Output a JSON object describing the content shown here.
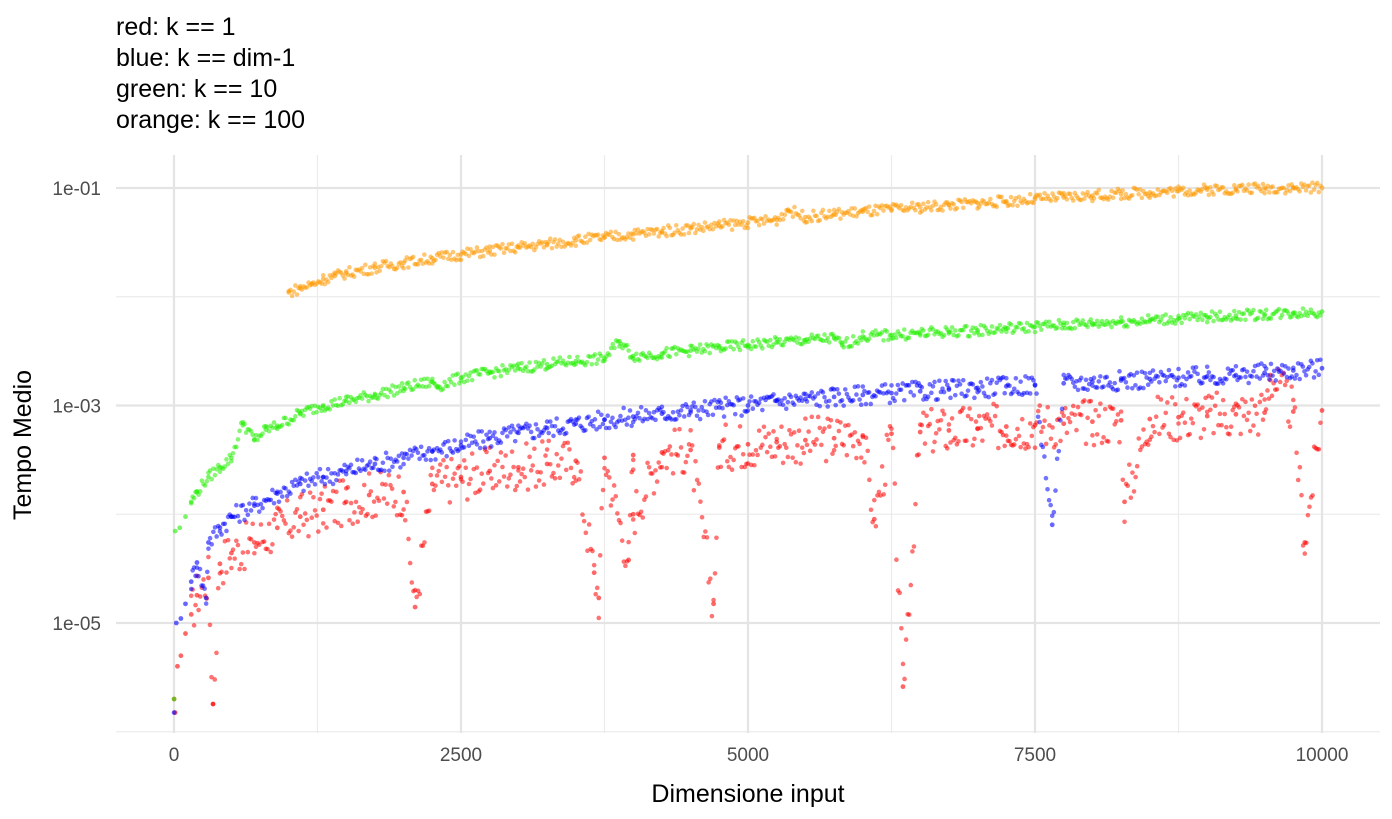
{
  "title_lines": [
    "red: k == 1",
    "blue: k == dim-1",
    "green: k == 10",
    "orange: k == 100"
  ],
  "chart_data": {
    "type": "scatter",
    "xlabel": "Dimensione input",
    "ylabel": "Tempo Medio",
    "x_ticks": [
      0,
      2500,
      5000,
      7500,
      10000
    ],
    "x_tick_labels": [
      "0",
      "2500",
      "5000",
      "7500",
      "10000"
    ],
    "xlim": [
      -500,
      10500
    ],
    "y_scale": "log10",
    "y_ticks": [
      1e-05,
      0.001,
      0.1
    ],
    "y_tick_labels": [
      "1e-05",
      "1e-03",
      "1e-01"
    ],
    "ylim": [
      1e-06,
      0.2
    ],
    "grid": true,
    "series": [
      {
        "color": "#ff0000",
        "points": [
          [
            1,
            2e-06
          ],
          [
            10,
            1.5e-06
          ],
          [
            30,
            4e-06
          ],
          [
            60,
            5e-06
          ],
          [
            100,
            8e-06
          ],
          [
            150,
            1.2e-05
          ],
          [
            200,
            1.8e-05
          ],
          [
            300,
            2.6e-05
          ],
          [
            400,
            3.5e-05
          ],
          [
            500,
            4.4e-05
          ],
          [
            700,
            5.5e-05
          ],
          [
            900,
            7.5e-05
          ],
          [
            1100,
            9.5e-05
          ],
          [
            1300,
            0.00011
          ],
          [
            1500,
            0.00013
          ],
          [
            1700,
            0.00015
          ],
          [
            2000,
            0.00016
          ],
          [
            2250,
            0.00019
          ],
          [
            2500,
            0.00022
          ],
          [
            2750,
            0.00025
          ],
          [
            3000,
            0.00027
          ],
          [
            3250,
            0.00029
          ],
          [
            3500,
            0.00031
          ],
          [
            3750,
            0.00033
          ],
          [
            4000,
            0.00035
          ],
          [
            4250,
            0.00037
          ],
          [
            4500,
            0.00039
          ],
          [
            4750,
            0.00041
          ],
          [
            5000,
            0.00044
          ],
          [
            5250,
            0.00046
          ],
          [
            5500,
            0.00048
          ],
          [
            5750,
            0.0005
          ],
          [
            6000,
            0.00053
          ],
          [
            6250,
            0.00055
          ],
          [
            6500,
            0.00057
          ],
          [
            6750,
            0.00059
          ],
          [
            7000,
            0.00061
          ],
          [
            7250,
            0.00064
          ],
          [
            7500,
            0.00066
          ],
          [
            7750,
            0.00068
          ],
          [
            8000,
            0.00071
          ],
          [
            8250,
            0.00073
          ],
          [
            8500,
            0.00075
          ],
          [
            8750,
            0.00078
          ],
          [
            9000,
            0.0008
          ],
          [
            9250,
            0.00083
          ],
          [
            9500,
            0.00086
          ],
          [
            9750,
            0.00088
          ],
          [
            10000,
            0.0009
          ],
          [
            340,
            1.8e-06
          ],
          [
            2100,
            1.4e-05
          ],
          [
            3700,
            1.7e-05
          ],
          [
            4700,
            1.5e-05
          ],
          [
            6350,
            2.6e-06
          ],
          [
            3960,
            3.8e-05
          ],
          [
            3660,
            2.9e-05
          ],
          [
            8280,
            0.00013
          ],
          [
            9850,
            5.5e-05
          ],
          [
            6100,
            9e-05
          ],
          [
            4000,
            0.0001
          ],
          [
            9550,
            0.0019
          ]
        ]
      },
      {
        "color": "#0000ff",
        "points": [
          [
            1,
            1.5e-06
          ],
          [
            20,
            1e-05
          ],
          [
            60,
            1.1e-05
          ],
          [
            100,
            1.5e-05
          ],
          [
            150,
            2.4e-05
          ],
          [
            200,
            3.6e-05
          ],
          [
            300,
            5.5e-05
          ],
          [
            400,
            7.5e-05
          ],
          [
            500,
            9.5e-05
          ],
          [
            700,
            0.00012
          ],
          [
            900,
            0.000155
          ],
          [
            1100,
            0.00019
          ],
          [
            1300,
            0.00022
          ],
          [
            1500,
            0.00025
          ],
          [
            1750,
            0.00029
          ],
          [
            2000,
            0.00033
          ],
          [
            2250,
            0.00038
          ],
          [
            2500,
            0.00043
          ],
          [
            2750,
            0.0005
          ],
          [
            3000,
            0.00056
          ],
          [
            3250,
            0.00062
          ],
          [
            3500,
            0.00068
          ],
          [
            3750,
            0.00074
          ],
          [
            4000,
            0.00079
          ],
          [
            4250,
            0.00084
          ],
          [
            4500,
            0.0009
          ],
          [
            4750,
            0.00096
          ],
          [
            5000,
            0.001
          ],
          [
            5250,
            0.0011
          ],
          [
            5500,
            0.00115
          ],
          [
            5750,
            0.0012
          ],
          [
            6000,
            0.00125
          ],
          [
            6250,
            0.0013
          ],
          [
            6500,
            0.00135
          ],
          [
            6750,
            0.0014
          ],
          [
            7000,
            0.00145
          ],
          [
            7250,
            0.0015
          ],
          [
            7500,
            0.00155
          ],
          [
            7750,
            0.0016
          ],
          [
            8000,
            0.00165
          ],
          [
            8250,
            0.0017
          ],
          [
            8500,
            0.00175
          ],
          [
            8750,
            0.0018
          ],
          [
            9000,
            0.00185
          ],
          [
            9250,
            0.0019
          ],
          [
            9500,
            0.002
          ],
          [
            9750,
            0.0021
          ],
          [
            10000,
            0.0022
          ],
          [
            7650,
            8e-05
          ],
          [
            280,
            1.7e-05
          ]
        ]
      },
      {
        "color": "#22ee00",
        "points": [
          [
            1,
            2e-06
          ],
          [
            10,
            7e-05
          ],
          [
            50,
            7.5e-05
          ],
          [
            100,
            9.5e-05
          ],
          [
            150,
            0.00013
          ],
          [
            200,
            0.00016
          ],
          [
            300,
            0.00022
          ],
          [
            400,
            0.00027
          ],
          [
            500,
            0.00033
          ],
          [
            700,
            0.00048
          ],
          [
            900,
            0.00065
          ],
          [
            1100,
            0.00085
          ],
          [
            1300,
            0.001
          ],
          [
            1500,
            0.0011
          ],
          [
            1750,
            0.00125
          ],
          [
            2000,
            0.00145
          ],
          [
            2250,
            0.00165
          ],
          [
            2500,
            0.0018
          ],
          [
            2750,
            0.002
          ],
          [
            3000,
            0.0022
          ],
          [
            3250,
            0.0024
          ],
          [
            3500,
            0.00255
          ],
          [
            3750,
            0.0027
          ],
          [
            4000,
            0.00285
          ],
          [
            4250,
            0.003
          ],
          [
            4500,
            0.0032
          ],
          [
            4750,
            0.0034
          ],
          [
            5000,
            0.0036
          ],
          [
            5250,
            0.0038
          ],
          [
            5500,
            0.004
          ],
          [
            5750,
            0.00415
          ],
          [
            6000,
            0.0043
          ],
          [
            6250,
            0.00445
          ],
          [
            6500,
            0.0046
          ],
          [
            6750,
            0.00475
          ],
          [
            7000,
            0.0049
          ],
          [
            7250,
            0.0051
          ],
          [
            7500,
            0.0053
          ],
          [
            7750,
            0.0055
          ],
          [
            8000,
            0.0057
          ],
          [
            8250,
            0.0059
          ],
          [
            8500,
            0.0061
          ],
          [
            8750,
            0.0063
          ],
          [
            9000,
            0.0065
          ],
          [
            9250,
            0.0067
          ],
          [
            9500,
            0.0069
          ],
          [
            9750,
            0.0071
          ],
          [
            10000,
            0.0073
          ],
          [
            600,
            0.0007
          ],
          [
            800,
            0.0006
          ],
          [
            2300,
            0.0015
          ],
          [
            3880,
            0.0039
          ],
          [
            5820,
            0.0036
          ]
        ]
      },
      {
        "color": "#ff9900",
        "points": [
          [
            1000,
            0.011
          ],
          [
            1100,
            0.012
          ],
          [
            1200,
            0.013
          ],
          [
            1300,
            0.0145
          ],
          [
            1400,
            0.0155
          ],
          [
            1500,
            0.0165
          ],
          [
            1750,
            0.0185
          ],
          [
            2000,
            0.0205
          ],
          [
            2250,
            0.0225
          ],
          [
            2500,
            0.0245
          ],
          [
            2750,
            0.0265
          ],
          [
            3000,
            0.0285
          ],
          [
            3250,
            0.0305
          ],
          [
            3500,
            0.033
          ],
          [
            3750,
            0.035
          ],
          [
            4000,
            0.0375
          ],
          [
            4250,
            0.04
          ],
          [
            4500,
            0.0425
          ],
          [
            4750,
            0.045
          ],
          [
            5000,
            0.048
          ],
          [
            5250,
            0.051
          ],
          [
            5500,
            0.054
          ],
          [
            5750,
            0.0575
          ],
          [
            6000,
            0.0605
          ],
          [
            6250,
            0.0635
          ],
          [
            6500,
            0.0665
          ],
          [
            6750,
            0.0695
          ],
          [
            7000,
            0.0725
          ],
          [
            7250,
            0.0755
          ],
          [
            7500,
            0.079
          ],
          [
            7750,
            0.082
          ],
          [
            8000,
            0.085
          ],
          [
            8250,
            0.088
          ],
          [
            8500,
            0.091
          ],
          [
            8750,
            0.094
          ],
          [
            9000,
            0.0965
          ],
          [
            9250,
            0.0985
          ],
          [
            9500,
            0.1
          ],
          [
            9750,
            0.1
          ],
          [
            10000,
            0.1
          ],
          [
            5350,
            0.063
          ]
        ]
      }
    ]
  }
}
